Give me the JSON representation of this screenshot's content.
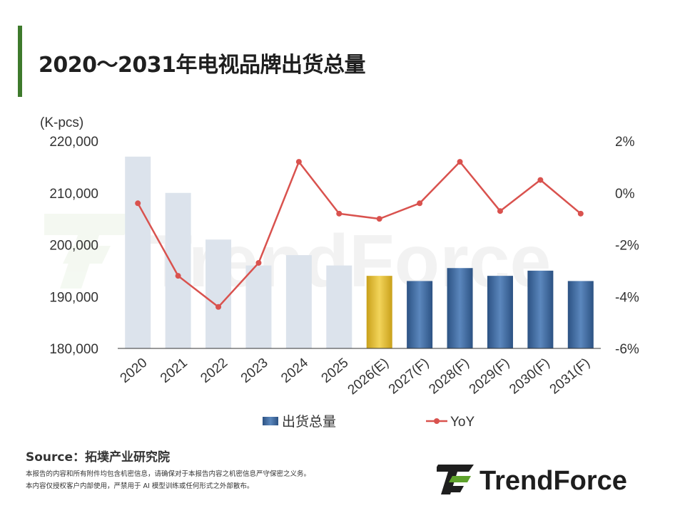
{
  "title": "2020～2031年电视品牌出货总量",
  "source": "Source：拓墣产业研究院",
  "notes": [
    "本报告的内容和所有附件均包含机密信息，请确保对于本报告内容之机密信息严守保密之义务。",
    "本内容仅授权客户内部使用，严禁用于 AI 模型训练或任何形式之外部散布。"
  ],
  "brand": "TrendForce",
  "watermark": "TrendForce",
  "chart_data": {
    "type": "bar",
    "categories": [
      "2020",
      "2021",
      "2022",
      "2023",
      "2024",
      "2025",
      "2026(E)",
      "2027(F)",
      "2028(F)",
      "2029(F)",
      "2030(F)",
      "2031(F)"
    ],
    "series": [
      {
        "name": "出货总量",
        "type": "bar",
        "axis": "left",
        "values": [
          217000,
          210000,
          201000,
          196000,
          198000,
          196000,
          194000,
          193000,
          195500,
          194000,
          195000,
          193000
        ]
      },
      {
        "name": "YoY",
        "type": "line",
        "axis": "right",
        "values": [
          -0.4,
          -3.2,
          -4.4,
          -2.7,
          1.2,
          -0.8,
          -1.0,
          -0.4,
          1.2,
          -0.7,
          0.5,
          -0.8
        ]
      }
    ],
    "y_unit_label": "(K-pcs)",
    "ylim": [
      180000,
      220000
    ],
    "yticks": [
      "180,000",
      "190,000",
      "200,000",
      "210,000",
      "220,000"
    ],
    "y2lim": [
      -6,
      2
    ],
    "y2ticks": [
      "-6%",
      "-4%",
      "-2%",
      "0%",
      "2%"
    ],
    "legend_position": "bottom",
    "colors": {
      "historical": "#dce3ec",
      "estimate": "#e6bf2e",
      "forecast": "#3f6aa0",
      "yoy_line": "#d9524e",
      "axis": "#333333"
    },
    "bar_style_per_category": [
      "historical",
      "historical",
      "historical",
      "historical",
      "historical",
      "historical",
      "estimate",
      "forecast",
      "forecast",
      "forecast",
      "forecast",
      "forecast"
    ]
  }
}
